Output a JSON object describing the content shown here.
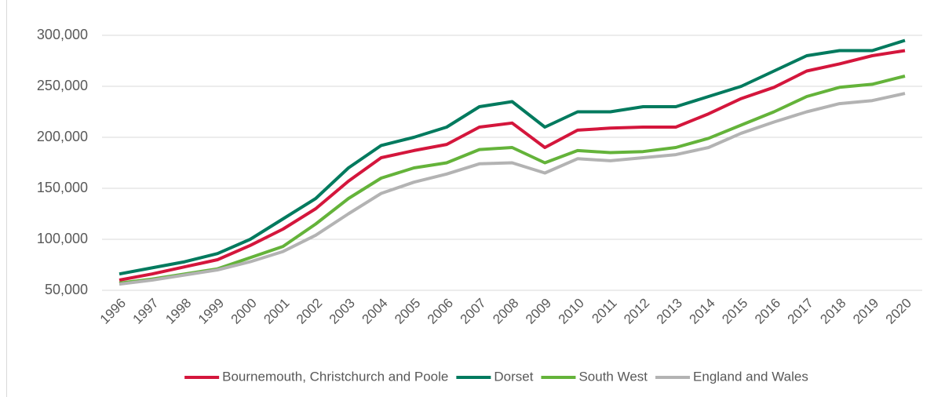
{
  "chart_data": {
    "type": "line",
    "categories": [
      "1996",
      "1997",
      "1998",
      "1999",
      "2000",
      "2001",
      "2002",
      "2003",
      "2004",
      "2005",
      "2006",
      "2007",
      "2008",
      "2009",
      "2010",
      "2011",
      "2012",
      "2013",
      "2014",
      "2015",
      "2016",
      "2017",
      "2018",
      "2019",
      "2020"
    ],
    "series": [
      {
        "name": "Bournemouth, Christchurch and Poole",
        "color": "#d4163c",
        "values": [
          60000,
          66000,
          73000,
          80000,
          94000,
          110000,
          130000,
          157000,
          180000,
          187000,
          193000,
          210000,
          214000,
          190000,
          207000,
          209000,
          210000,
          210000,
          223000,
          238000,
          249000,
          265000,
          272000,
          280000,
          285000
        ]
      },
      {
        "name": "Dorset",
        "color": "#007a5e",
        "values": [
          66000,
          72000,
          78000,
          86000,
          100000,
          120000,
          140000,
          170000,
          192000,
          200000,
          210000,
          230000,
          235000,
          210000,
          225000,
          225000,
          230000,
          230000,
          240000,
          250000,
          265000,
          280000,
          285000,
          285000,
          295000
        ]
      },
      {
        "name": "South West",
        "color": "#64b33a",
        "values": [
          57000,
          61000,
          66000,
          71000,
          82000,
          93000,
          115000,
          140000,
          160000,
          170000,
          175000,
          188000,
          190000,
          175000,
          187000,
          185000,
          186000,
          190000,
          199000,
          212000,
          225000,
          240000,
          249000,
          252000,
          260000
        ]
      },
      {
        "name": "England and Wales",
        "color": "#b3b3b3",
        "values": [
          56000,
          60000,
          65000,
          70000,
          78000,
          88000,
          104000,
          125000,
          145000,
          156000,
          164000,
          174000,
          175000,
          165000,
          179000,
          177000,
          180000,
          183000,
          190000,
          204000,
          215000,
          225000,
          233000,
          236000,
          243000
        ]
      }
    ],
    "ylim": [
      50000,
      300000
    ],
    "yticks": [
      {
        "value": 50000,
        "label": "50,000"
      },
      {
        "value": 100000,
        "label": "100,000"
      },
      {
        "value": 150000,
        "label": "150,000"
      },
      {
        "value": 200000,
        "label": "200,000"
      },
      {
        "value": 250000,
        "label": "250,000"
      },
      {
        "value": 300000,
        "label": "300,000"
      }
    ],
    "grid": true,
    "legend": "bottom"
  }
}
